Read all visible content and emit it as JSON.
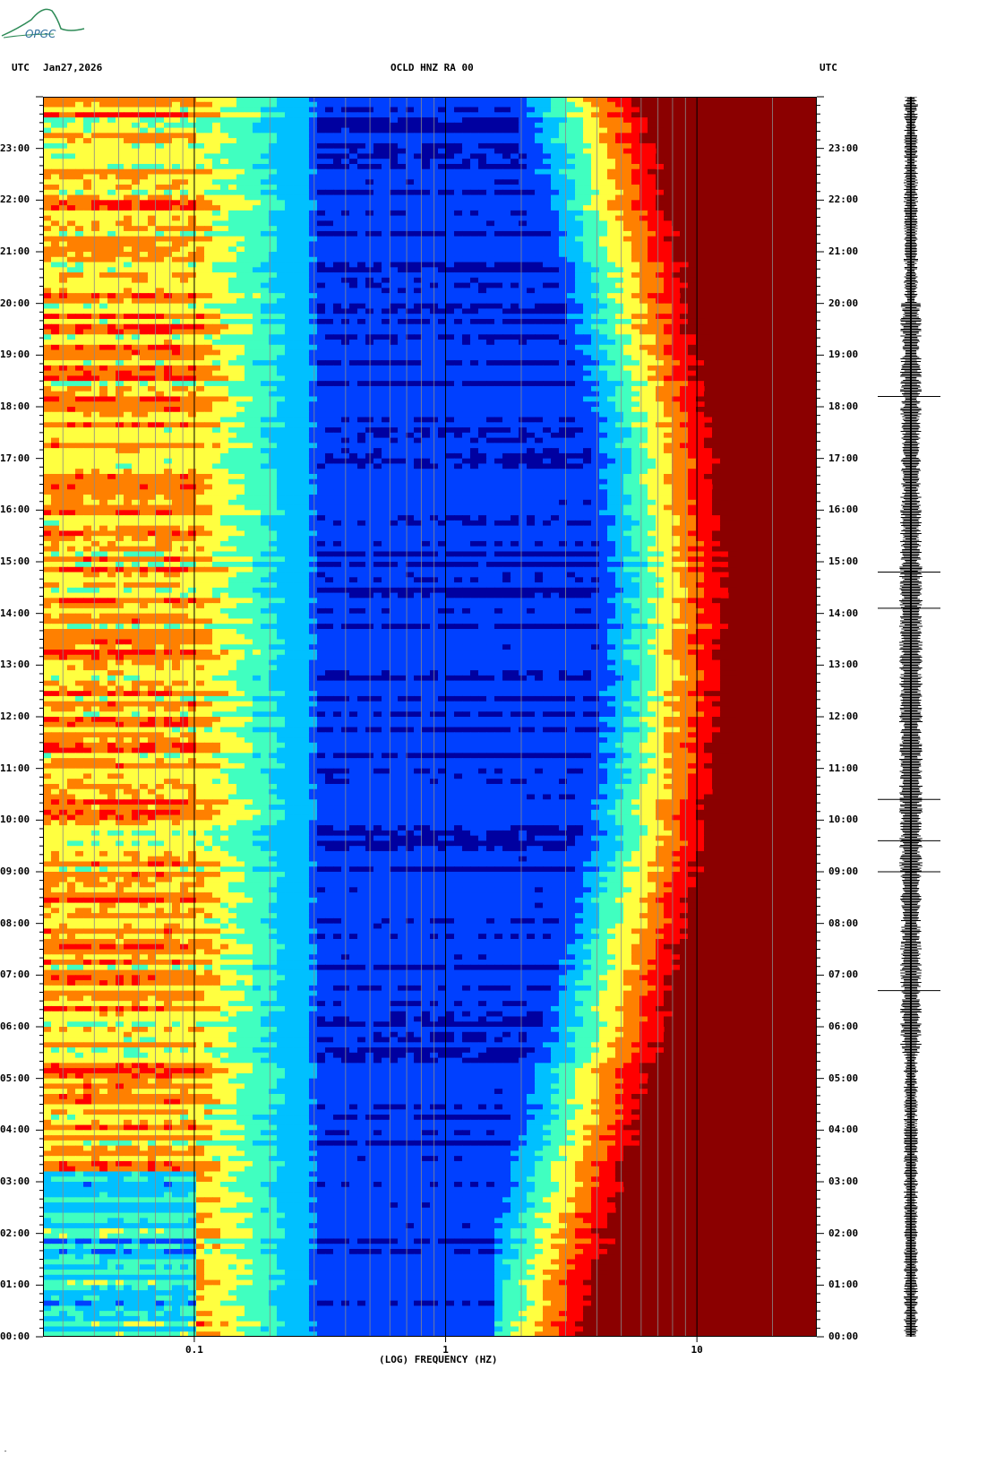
{
  "header": {
    "left_tz": "UTC",
    "date": "Jan27,2026",
    "station": "OCLD HNZ RA 00",
    "right_tz": "UTC"
  },
  "logo": {
    "text": "OPGC",
    "color": "#2e8b57"
  },
  "corner_mark": "″",
  "chart_data": {
    "type": "heatmap",
    "title": "OCLD HNZ RA 00",
    "xlabel": "(LOG) FREQUENCY (HZ)",
    "x_scale": "log",
    "x_range_hz": [
      0.025,
      30
    ],
    "x_ticks": [
      {
        "value": 0.1,
        "label": "0.1"
      },
      {
        "value": 1,
        "label": "1"
      },
      {
        "value": 10,
        "label": "10"
      }
    ],
    "y_unit": "UTC hour",
    "y_range_hours": [
      0,
      24
    ],
    "y_ticks_left": [
      "00:00",
      "01:00",
      "02:00",
      "03:00",
      "04:00",
      "05:00",
      "06:00",
      "07:00",
      "08:00",
      "09:00",
      "10:00",
      "11:00",
      "12:00",
      "13:00",
      "14:00",
      "15:00",
      "16:00",
      "17:00",
      "18:00",
      "19:00",
      "20:00",
      "21:00",
      "22:00",
      "23:00"
    ],
    "y_ticks_right": [
      "00:00",
      "01:00",
      "02:00",
      "03:00",
      "04:00",
      "05:00",
      "06:00",
      "07:00",
      "08:00",
      "09:00",
      "10:00",
      "11:00",
      "12:00",
      "13:00",
      "14:00",
      "15:00",
      "16:00",
      "17:00",
      "18:00",
      "19:00",
      "20:00",
      "21:00",
      "22:00",
      "23:00"
    ],
    "colormap": [
      "#0000a0",
      "#0040ff",
      "#00c0ff",
      "#40ffc0",
      "#ffff40",
      "#ff8000",
      "#ff0000",
      "#8b0000"
    ],
    "waveform_spikes_hours": [
      6.7,
      9.0,
      9.6,
      10.4,
      14.1,
      14.8,
      18.2
    ]
  }
}
